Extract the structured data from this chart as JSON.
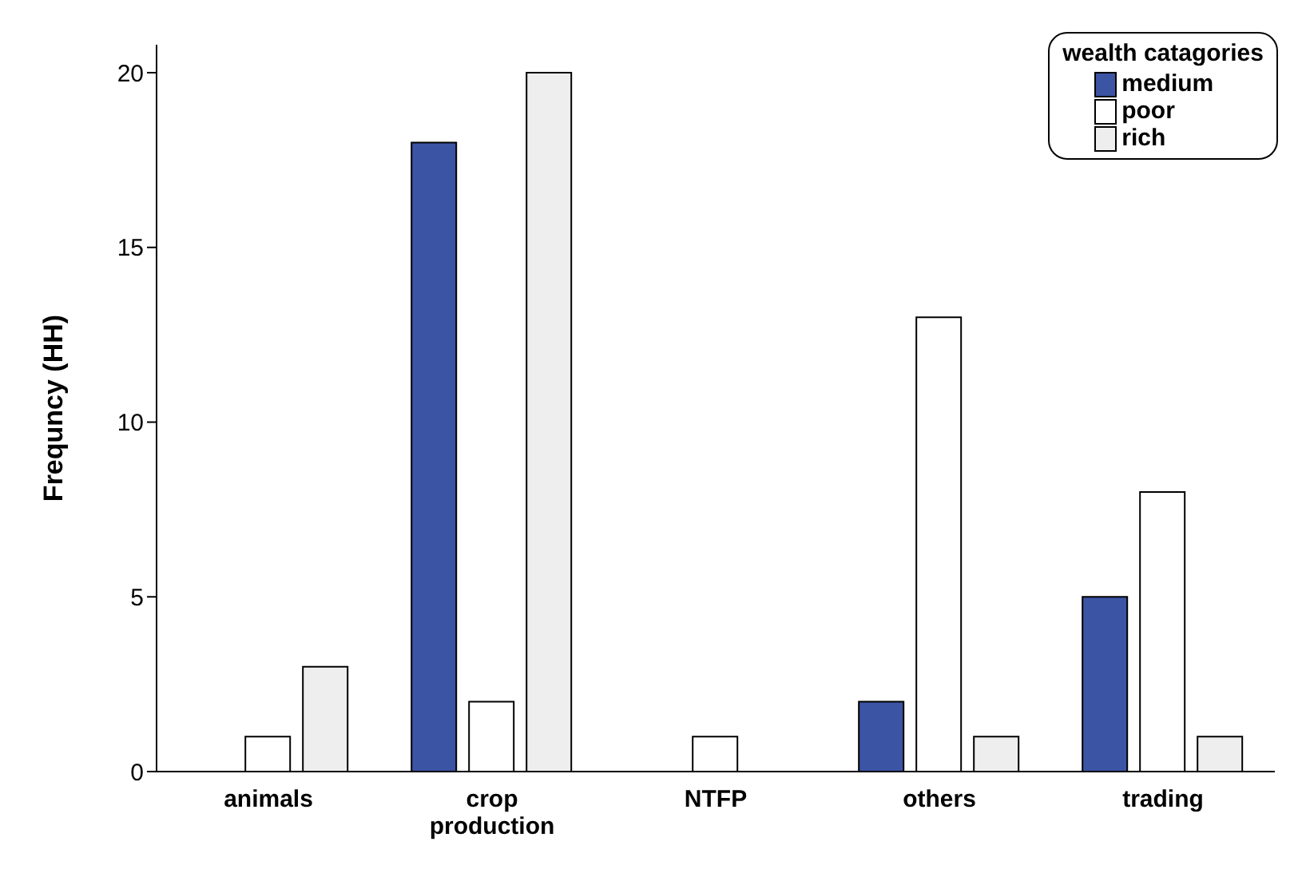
{
  "chart_data": {
    "type": "bar",
    "ylabel": "Frequncy (HH)",
    "legend_title": "wealth catagories",
    "categories": [
      "animals",
      "crop production",
      "NTFP",
      "others",
      "trading"
    ],
    "series": [
      {
        "name": "medium",
        "color": "#3c54a4",
        "values": [
          0,
          18,
          0,
          2,
          5
        ]
      },
      {
        "name": "poor",
        "color": "#ffffff",
        "values": [
          1,
          2,
          1,
          13,
          8
        ]
      },
      {
        "name": "rich",
        "color": "#eeeeee",
        "values": [
          3,
          20,
          0,
          1,
          1
        ]
      }
    ],
    "ylim": [
      0,
      20.8
    ],
    "yticks": [
      0,
      5,
      10,
      15,
      20
    ],
    "legend": "top right"
  }
}
